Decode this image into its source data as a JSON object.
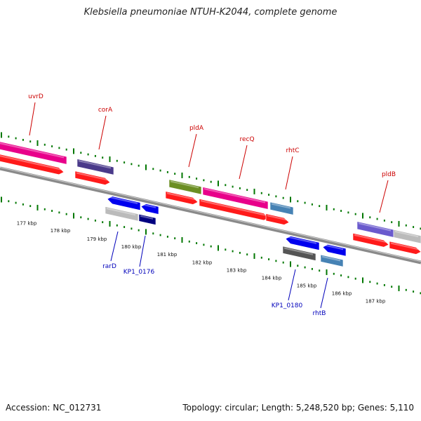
{
  "title": "Klebsiella pneumoniae NTUH-K2044, complete genome",
  "footer": {
    "accession": "Accession: NC_012731",
    "summary": "Topology: circular; Length: 5,248,520 bp; Genes: 5,110"
  },
  "colors": {
    "forward_label": "#cc0000",
    "reverse_label": "#0000bb",
    "tick": "#007700",
    "backbone": "#888888"
  },
  "scale_labels": [
    "177 kbp",
    "178 kbp",
    "179 kbp",
    "180 kbp",
    "181 kbp",
    "182 kbp",
    "183 kbp",
    "184 kbp",
    "185 kbp",
    "186 kbp",
    "187 kbp"
  ],
  "forward_genes": [
    {
      "label": "uvrD",
      "color": "#e8008a"
    },
    {
      "label": "corA",
      "color": "#4a3a8a"
    },
    {
      "label": "pldA",
      "color": "#6b8e23"
    },
    {
      "label": "recQ",
      "color": "#e8008a"
    },
    {
      "label": "rhtC",
      "color": "#4682b4"
    },
    {
      "label": "pldB",
      "color": "#6a5acd"
    }
  ],
  "reverse_genes": [
    {
      "label": "rarD",
      "color": "#bbbbbb"
    },
    {
      "label": "KP1_0176",
      "color": "#000080"
    },
    {
      "label": "KP1_0180",
      "color": "#555555"
    },
    {
      "label": "rhtB",
      "color": "#4682b4"
    }
  ]
}
